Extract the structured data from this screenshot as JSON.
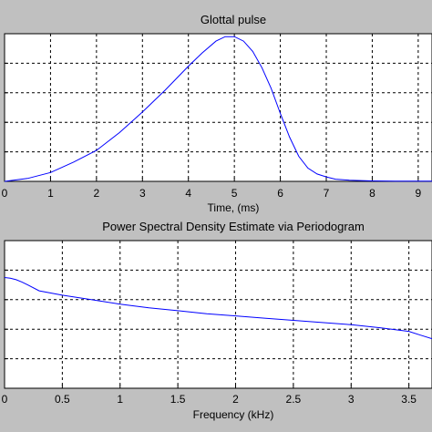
{
  "chart_data": [
    {
      "type": "line",
      "title": "Glottal pulse",
      "xlabel": "Time, (ms)",
      "ylabel": "",
      "xlim": [
        0,
        9.3
      ],
      "ylim": [
        0,
        1
      ],
      "xticks": [
        0,
        1,
        2,
        3,
        4,
        5,
        6,
        7,
        8,
        9
      ],
      "xtick_labels": [
        "0",
        "1",
        "2",
        "3",
        "4",
        "5",
        "6",
        "7",
        "8",
        "9"
      ],
      "yticks": [
        0,
        0.2,
        0.4,
        0.6,
        0.8,
        1.0
      ],
      "grid": true,
      "line_color": "#0000ff",
      "series": [
        {
          "x": [
            0,
            0.5,
            1,
            1.5,
            2,
            2.5,
            3,
            3.5,
            4,
            4.3,
            4.6,
            4.8,
            5.0,
            5.2,
            5.4,
            5.6,
            5.8,
            6.0,
            6.2,
            6.4,
            6.6,
            6.8,
            7.0,
            7.2,
            7.5,
            8.0,
            8.5,
            9.0,
            9.3
          ],
          "y": [
            0,
            0.02,
            0.06,
            0.13,
            0.21,
            0.33,
            0.47,
            0.62,
            0.78,
            0.87,
            0.95,
            0.98,
            0.98,
            0.95,
            0.88,
            0.77,
            0.63,
            0.46,
            0.3,
            0.17,
            0.09,
            0.05,
            0.03,
            0.015,
            0.008,
            0.003,
            0.0015,
            0.001,
            0.001
          ]
        }
      ]
    },
    {
      "type": "line",
      "title": "Power Spectral Density Estimate via Periodogram",
      "xlabel": "Frequency (kHz)",
      "ylabel": "",
      "xlim": [
        0,
        3.7
      ],
      "ylim": [
        0,
        1
      ],
      "xticks": [
        0,
        0.5,
        1,
        1.5,
        2,
        2.5,
        3,
        3.5
      ],
      "xtick_labels": [
        "0",
        "0.5",
        "1",
        "1.5",
        "2",
        "2.5",
        "3",
        "3.5"
      ],
      "yticks": [
        0,
        0.2,
        0.4,
        0.6,
        0.8,
        1.0
      ],
      "grid": true,
      "line_color": "#0000ff",
      "series": [
        {
          "x": [
            0,
            0.05,
            0.1,
            0.15,
            0.2,
            0.3,
            0.5,
            0.75,
            1.0,
            1.25,
            1.5,
            1.75,
            2.0,
            2.25,
            2.5,
            2.75,
            3.0,
            3.25,
            3.5,
            3.6,
            3.7
          ],
          "y": [
            0.75,
            0.745,
            0.735,
            0.72,
            0.7,
            0.66,
            0.63,
            0.6,
            0.57,
            0.545,
            0.525,
            0.505,
            0.49,
            0.475,
            0.46,
            0.445,
            0.43,
            0.41,
            0.385,
            0.36,
            0.335
          ]
        }
      ]
    }
  ]
}
